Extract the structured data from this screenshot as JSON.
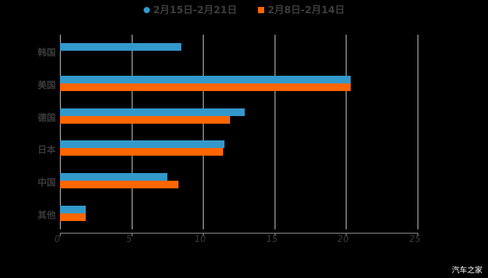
{
  "chart_data": {
    "type": "bar",
    "orientation": "horizontal",
    "title": "",
    "xlabel": "",
    "ylabel": "",
    "categories": [
      "韩国",
      "美国",
      "德国",
      "日本",
      "中国",
      "其他"
    ],
    "series": [
      {
        "name": "2月15日-2月21日",
        "color": "#3399cc",
        "values": [
          8.5,
          20.3,
          12.9,
          11.5,
          7.5,
          1.8
        ]
      },
      {
        "name": "2月8日-2月14日",
        "color": "#ff6600",
        "values": [
          null,
          20.3,
          11.9,
          11.4,
          8.3,
          1.8
        ]
      }
    ],
    "xlim": [
      0,
      25
    ],
    "xticks": [
      "0",
      "5",
      "10",
      "15",
      "20",
      "25"
    ],
    "grid": true,
    "legend_position": "top"
  },
  "legend": {
    "items": [
      {
        "label": "2月15日-2月21日",
        "color": "#3399cc",
        "marker": "circle"
      },
      {
        "label": "2月8日-2月14日",
        "color": "#ff6600",
        "marker": "square"
      }
    ]
  },
  "watermark": "汽车之家"
}
